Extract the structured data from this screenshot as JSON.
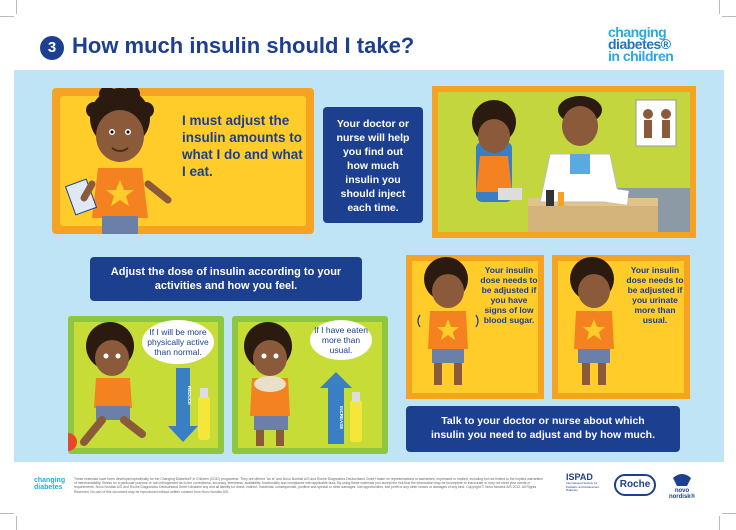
{
  "header": {
    "step_number": "3",
    "title": "How much insulin should I take?"
  },
  "brand": {
    "line1": "changing",
    "line2": "diabetes®",
    "line3": "in children"
  },
  "panels": {
    "intro_message": "I must adjust the insulin amounts to what I do and what I eat.",
    "doctor_message": "Your doctor or nurse will help you find out how much insulin you should inject each time.",
    "adjust_banner": "Adjust the dose of insulin according to your activities and how you feel.",
    "active_bubble": "If I will be more physically active than normal.",
    "eaten_bubble": "If I have eaten more than usual.",
    "reduce_label": "REDUCE",
    "increase_label": "INCREASE",
    "low_sugar_note": "Your insulin dose needs to be adjusted if you have signs of low blood sugar.",
    "urinate_note": "Your insulin dose needs to be adjusted if you urinate more than usual.",
    "talk_banner": "Talk to your doctor or nurse about which insulin you need to adjust and by how much."
  },
  "footer": {
    "small_brand_line1": "changing",
    "small_brand_line2": "diabetes",
    "disclaimer": "These materials have been developed specifically for the Changing Diabetes® in Children (CDiC) programme. They are offered \"as is\" and Novo Nordisk A/S and Roche Diagnostics Deutschland GmbH make no representations or warranties, expressed or implied, including but not limited to the implied warranties of merchantability, fitness for a particular purpose or non-infringement as to the correctness, accuracy, timeliness, availability, functionality and compliance with applicable laws. By using these materials you accept the risk that the information may be incomplete or inaccurate or may not meet your needs or requirements. Novo Nordisk A/S and Roche Diagnostics Deutschland GmbH disclaim any and all liability for direct, indirect, incidental, consequential, punitive and special or other damages, lost opportunities, lost profit or any other losses or damages of any kind. Copyright © Novo Nordisk A/S 2012. All Rights Reserved. No part of this document may be reproduced without written consent from Novo Nordisk A/S.",
    "ispad": "ISPAD",
    "ispad_sub": "International Society for Pediatric and Adolescent Diabetes",
    "roche": "Roche",
    "novo": "novo nordisk®"
  },
  "colors": {
    "navy": "#1c3f8f",
    "sky": "#bfe4f5",
    "orange": "#f6a323",
    "yellow": "#ffcc2a",
    "green": "#8ec63f",
    "cyan": "#29a9e0"
  }
}
